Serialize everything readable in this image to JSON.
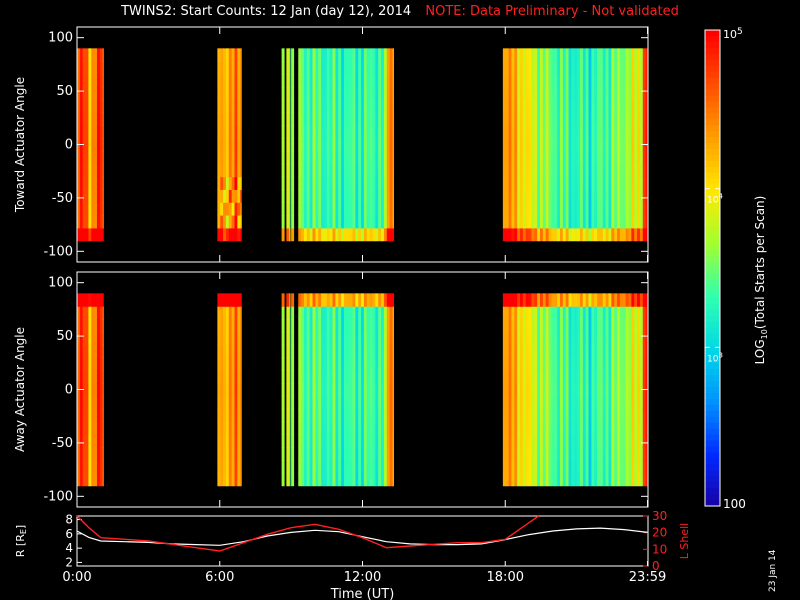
{
  "title": {
    "main": "TWINS2: Start Counts: 12 Jan (day  12), 2014",
    "note": "NOTE: Data Preliminary - Not validated"
  },
  "stamp": "23 Jan 14",
  "colors": {
    "background": "#000000",
    "axis": "#ffffff",
    "note": "#ff2020",
    "r_line": "#ffffff",
    "lshell_line": "#ff2020"
  },
  "chart_data": [
    {
      "type": "heatmap",
      "id": "toward",
      "ylabel": "Toward Actuator Angle",
      "ylim": [
        -110,
        110
      ],
      "yticks": [
        100,
        50,
        0,
        -50,
        -100
      ],
      "xlim": [
        0,
        24
      ],
      "angle_range": [
        -90,
        90
      ],
      "data_intervals_hours": [
        [
          0.0,
          1.1
        ],
        [
          5.9,
          6.9
        ],
        [
          8.6,
          8.7
        ],
        [
          8.8,
          8.95
        ],
        [
          9.0,
          9.1
        ],
        [
          9.3,
          13.3
        ],
        [
          17.9,
          23.99
        ]
      ]
    },
    {
      "type": "heatmap",
      "id": "away",
      "ylabel": "Away Actuator Angle",
      "ylim": [
        -110,
        110
      ],
      "yticks": [
        100,
        50,
        0,
        -50,
        -100
      ],
      "xlim": [
        0,
        24
      ],
      "angle_range": [
        -90,
        90
      ],
      "data_intervals_hours": [
        [
          0.0,
          1.1
        ],
        [
          5.9,
          6.9
        ],
        [
          8.6,
          8.7
        ],
        [
          8.8,
          8.95
        ],
        [
          9.0,
          9.1
        ],
        [
          9.3,
          13.3
        ],
        [
          17.9,
          23.99
        ]
      ]
    },
    {
      "type": "line",
      "id": "orbit",
      "ylabel_left": "R [R",
      "ylabel_left_sub": "E",
      "ylabel_left_end": "]",
      "ylabel_right": "L Shell",
      "xlabel": "Time (UT)",
      "xlim": [
        0,
        24
      ],
      "xticks": [
        "0:00",
        "6:00",
        "12:00",
        "18:00",
        "23:59"
      ],
      "xtick_hours": [
        0,
        6,
        12,
        18,
        23.98
      ],
      "ylim_left": [
        1.5,
        8.5
      ],
      "yticks_left": [
        "2",
        "4",
        "6",
        "8"
      ],
      "ytick_values_left": [
        2,
        4,
        6,
        8
      ],
      "ylim_right": [
        0,
        30
      ],
      "yticks_right": [
        "0",
        "10",
        "20",
        "30"
      ],
      "ytick_values_right": [
        0,
        10,
        20,
        30
      ],
      "series": [
        {
          "axis": "left",
          "x": [
            0,
            0.5,
            1,
            2,
            3,
            4,
            5,
            6,
            7,
            8,
            9,
            10,
            11,
            12,
            13,
            14,
            15,
            16,
            17,
            18,
            19,
            20,
            21,
            22,
            23,
            23.99
          ],
          "values": [
            6.4,
            5.5,
            5.0,
            4.9,
            4.8,
            4.6,
            4.5,
            4.4,
            4.9,
            5.7,
            6.2,
            6.5,
            6.3,
            5.6,
            4.9,
            4.6,
            4.5,
            4.5,
            4.6,
            5.2,
            5.9,
            6.4,
            6.7,
            6.8,
            6.6,
            6.2
          ]
        },
        {
          "axis": "right",
          "x": [
            0,
            0.5,
            1,
            2,
            3,
            4,
            5,
            6,
            7,
            8,
            9,
            10,
            11,
            12,
            13,
            14,
            15,
            16,
            17,
            18,
            19,
            19.4
          ],
          "values": [
            30,
            23,
            17,
            16,
            15,
            13,
            11,
            9,
            14,
            19,
            23,
            25,
            22,
            17,
            11,
            12,
            13,
            14,
            14,
            16,
            26,
            30
          ]
        }
      ]
    },
    {
      "type": "colorbar",
      "id": "colorbar",
      "label": "LOG",
      "label_sub": "10",
      "label_end": "(Total Starts per Scan)",
      "range_log": [
        2,
        5
      ],
      "tick_log": [
        3,
        4
      ],
      "ticks": [
        "10",
        "10"
      ],
      "tick_sups": [
        "3",
        "4"
      ],
      "top_label": "10",
      "top_label_sup": "5",
      "bottom_label": "100",
      "stops": [
        "#1800a0",
        "#0028ff",
        "#0090ff",
        "#00d8e8",
        "#30ffb0",
        "#a0ff30",
        "#ffe800",
        "#ffa000",
        "#ff5000",
        "#ff0000"
      ]
    }
  ]
}
